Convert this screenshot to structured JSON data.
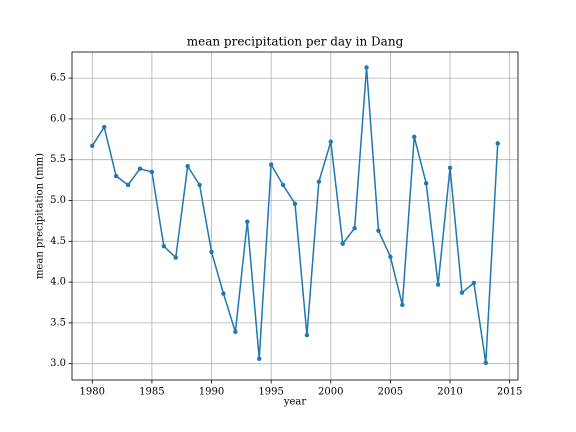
{
  "chart_data": {
    "type": "line",
    "title": "mean precipitation per day in Dang",
    "xlabel": "year",
    "ylabel": "mean precipitation (mm)",
    "x": [
      1980,
      1981,
      1982,
      1983,
      1984,
      1985,
      1986,
      1987,
      1988,
      1989,
      1990,
      1991,
      1992,
      1993,
      1994,
      1995,
      1996,
      1997,
      1998,
      1999,
      2000,
      2001,
      2002,
      2003,
      2004,
      2005,
      2006,
      2007,
      2008,
      2009,
      2010,
      2011,
      2012,
      2013,
      2014
    ],
    "series": [
      {
        "name": "precipitation",
        "color": "#1f77b4",
        "values": [
          5.67,
          5.9,
          5.3,
          5.19,
          5.39,
          5.35,
          4.44,
          4.3,
          5.42,
          5.19,
          4.37,
          3.86,
          3.39,
          4.74,
          3.06,
          5.44,
          5.19,
          4.96,
          3.35,
          5.23,
          5.72,
          4.47,
          4.66,
          6.63,
          4.63,
          4.31,
          3.72,
          5.78,
          5.21,
          3.97,
          5.4,
          3.87,
          3.99,
          3.01,
          5.7
        ]
      }
    ],
    "xlim": [
      1978.3,
      2015.7
    ],
    "xticks": [
      1980,
      1985,
      1990,
      1995,
      2000,
      2005,
      2010,
      2015
    ],
    "ylim": [
      2.8,
      6.82
    ],
    "yticks": [
      {
        "value": 3,
        "label": "3.0"
      },
      3.5,
      {
        "value": 4,
        "label": "4.0"
      },
      4.5,
      {
        "value": 5,
        "label": "5.0"
      },
      5.5,
      {
        "value": 6,
        "label": "6.0"
      },
      6.5
    ],
    "grid": true
  }
}
